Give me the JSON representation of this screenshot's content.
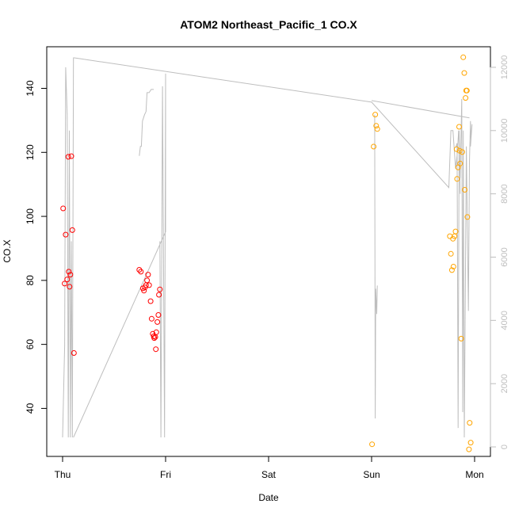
{
  "chart_data": {
    "type": "scatter",
    "title": "ATOM2 Northeast_Pacific_1 CO.X",
    "xlabel": "Date",
    "ylabel": "CO.X",
    "x_ticks": [
      "Thu",
      "Fri",
      "Sat",
      "Sun",
      "Mon"
    ],
    "x_units": "days",
    "xlim": [
      0,
      4
    ],
    "ylim": [
      25,
      153
    ],
    "y_ticks": [
      40,
      60,
      80,
      100,
      120,
      140
    ],
    "y2lim": [
      -300,
      12650
    ],
    "y2_ticks": [
      0,
      2000,
      4000,
      6000,
      8000,
      10000,
      12000
    ],
    "grid": false,
    "legend": "none",
    "series": [
      {
        "kind": "points",
        "axis": "left",
        "color": "#FF0000",
        "points": [
          [
            0.005,
            102.5
          ],
          [
            0.02,
            79.0
          ],
          [
            0.03,
            94.3
          ],
          [
            0.045,
            80.3
          ],
          [
            0.055,
            118.6
          ],
          [
            0.06,
            82.7
          ],
          [
            0.068,
            78.0
          ],
          [
            0.075,
            81.8
          ],
          [
            0.085,
            118.8
          ],
          [
            0.095,
            95.7
          ],
          [
            0.11,
            57.3
          ],
          [
            0.745,
            83.3
          ],
          [
            0.76,
            82.7
          ],
          [
            0.78,
            77.5
          ],
          [
            0.79,
            76.8
          ],
          [
            0.8,
            77.8
          ],
          [
            0.81,
            78.5
          ],
          [
            0.82,
            80.0
          ],
          [
            0.83,
            81.8
          ],
          [
            0.84,
            78.5
          ],
          [
            0.855,
            73.5
          ],
          [
            0.865,
            68.0
          ],
          [
            0.875,
            63.3
          ],
          [
            0.885,
            62.5
          ],
          [
            0.89,
            62.0
          ],
          [
            0.9,
            62.3
          ],
          [
            0.905,
            58.5
          ],
          [
            0.91,
            63.8
          ],
          [
            0.92,
            67.0
          ],
          [
            0.93,
            69.2
          ],
          [
            0.935,
            75.5
          ],
          [
            0.945,
            77.2
          ]
        ]
      },
      {
        "kind": "points",
        "axis": "left",
        "color": "#FFA500",
        "points": [
          [
            3.005,
            28.8
          ],
          [
            3.02,
            121.8
          ],
          [
            3.035,
            131.8
          ],
          [
            3.045,
            128.3
          ],
          [
            3.055,
            127.3
          ],
          [
            3.76,
            93.8
          ],
          [
            3.77,
            88.3
          ],
          [
            3.78,
            83.2
          ],
          [
            3.79,
            93.0
          ],
          [
            3.795,
            84.3
          ],
          [
            3.805,
            93.8
          ],
          [
            3.815,
            95.3
          ],
          [
            3.825,
            121.0
          ],
          [
            3.83,
            111.7
          ],
          [
            3.84,
            115.3
          ],
          [
            3.85,
            128.0
          ],
          [
            3.855,
            120.5
          ],
          [
            3.86,
            116.5
          ],
          [
            3.87,
            61.8
          ],
          [
            3.88,
            120.1
          ],
          [
            3.89,
            149.7
          ],
          [
            3.9,
            144.8
          ],
          [
            3.905,
            108.3
          ],
          [
            3.912,
            137.0
          ],
          [
            3.918,
            139.3
          ],
          [
            3.925,
            139.3
          ],
          [
            3.93,
            99.8
          ],
          [
            3.945,
            27.2
          ],
          [
            3.952,
            35.5
          ],
          [
            3.962,
            29.3
          ]
        ]
      },
      {
        "kind": "line",
        "axis": "right",
        "color": "#BEBEBE",
        "segments": [
          [
            [
              0,
              300
            ],
            [
              0.02,
              3200
            ],
            [
              0.03,
              12000
            ],
            [
              0.045,
              10500
            ],
            [
              0.055,
              300
            ],
            [
              0.065,
              10000
            ],
            [
              0.075,
              300
            ],
            [
              0.085,
              6500
            ],
            [
              0.095,
              300
            ],
            [
              0.105,
              12300
            ],
            [
              0.115,
              12300
            ],
            [
              3.0,
              10900
            ],
            [
              3.75,
              8200
            ],
            [
              3.77,
              10000
            ],
            [
              3.79,
              10000
            ],
            [
              3.815,
              8800
            ],
            [
              3.83,
              9200
            ],
            [
              3.845,
              10000
            ],
            [
              3.86,
              8500
            ],
            [
              3.875,
              11000
            ],
            [
              3.885,
              1100
            ],
            [
              3.89,
              10000
            ],
            [
              3.9,
              300
            ],
            [
              3.92,
              9500
            ],
            [
              3.94,
              4300
            ],
            [
              3.95,
              9000
            ],
            [
              3.96,
              10300
            ],
            [
              3.965,
              9700
            ],
            [
              3.96,
              9500
            ],
            [
              3.975,
              10200
            ]
          ],
          [
            [
              0.105,
              300
            ],
            [
              1.0,
              6800
            ],
            [
              1.0,
              11800
            ],
            [
              0.99,
              300
            ],
            [
              0.97,
              11400
            ],
            [
              0.955,
              300
            ],
            [
              0.945,
              6500
            ]
          ],
          [
            [
              0.745,
              9200
            ],
            [
              0.755,
              9500
            ],
            [
              0.765,
              9500
            ],
            [
              0.775,
              10300
            ],
            [
              0.795,
              10500
            ],
            [
              0.81,
              10600
            ],
            [
              0.82,
              11200
            ],
            [
              0.84,
              11200
            ],
            [
              0.86,
              11300
            ],
            [
              0.885,
              11300
            ]
          ],
          [
            [
              3.0,
              10950
            ],
            [
              3.95,
              10400
            ]
          ],
          [
            [
              3.03,
              10500
            ],
            [
              3.035,
              900
            ],
            [
              3.04,
              5000
            ],
            [
              3.05,
              4200
            ],
            [
              3.055,
              5100
            ]
          ],
          [
            [
              3.82,
              9500
            ],
            [
              3.83,
              9600
            ],
            [
              3.84,
              600
            ],
            [
              3.85,
              10000
            ],
            [
              3.86,
              8000
            ]
          ]
        ]
      }
    ]
  }
}
